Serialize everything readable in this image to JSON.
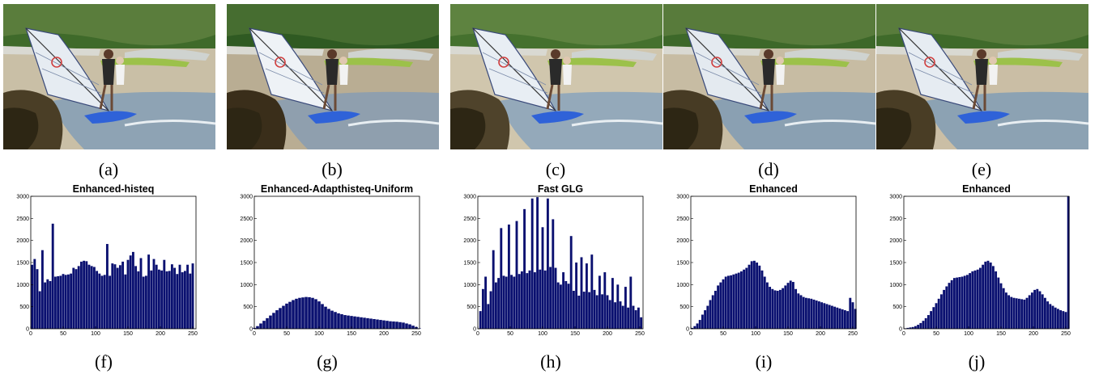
{
  "photo_captions": [
    "(a)",
    "(b)",
    "(c)",
    "(d)",
    "(e)"
  ],
  "chart_captions": [
    "(f)",
    "(g)",
    "(h)",
    "(i)",
    "(j)"
  ],
  "colors": {
    "bar": "#0a1070",
    "axis": "#000000"
  },
  "chart_data": [
    {
      "type": "bar",
      "title": "Enhanced-histeq",
      "xlim": [
        0,
        255
      ],
      "ylim": [
        0,
        3000
      ],
      "xticks": [
        0,
        50,
        100,
        150,
        200,
        250
      ],
      "yticks": [
        0,
        500,
        1000,
        1500,
        2000,
        2500,
        3000
      ],
      "x": [
        2,
        6,
        10,
        14,
        18,
        22,
        26,
        30,
        34,
        38,
        42,
        46,
        50,
        54,
        58,
        62,
        66,
        70,
        74,
        78,
        82,
        86,
        90,
        94,
        98,
        102,
        106,
        110,
        114,
        118,
        122,
        126,
        130,
        134,
        138,
        142,
        146,
        150,
        154,
        158,
        162,
        166,
        170,
        174,
        178,
        182,
        186,
        190,
        194,
        198,
        202,
        206,
        210,
        214,
        218,
        222,
        226,
        230,
        234,
        238,
        242,
        246,
        250
      ],
      "values": [
        1450,
        1580,
        1350,
        850,
        1780,
        1050,
        1120,
        1080,
        2380,
        1180,
        1190,
        1200,
        1240,
        1220,
        1230,
        1250,
        1380,
        1350,
        1420,
        1520,
        1540,
        1530,
        1450,
        1420,
        1400,
        1310,
        1250,
        1200,
        1220,
        1920,
        1200,
        1480,
        1460,
        1380,
        1440,
        1520,
        1230,
        1560,
        1660,
        1740,
        1420,
        1300,
        1600,
        1180,
        1200,
        1680,
        1320,
        1580,
        1450,
        1340,
        1320,
        1560,
        1300,
        1310,
        1460,
        1380,
        1240,
        1450,
        1280,
        1310,
        1450,
        1250,
        1480
      ]
    },
    {
      "type": "bar",
      "title": "Enhanced-Adapthisteq-Uniform",
      "xlim": [
        0,
        255
      ],
      "ylim": [
        0,
        3000
      ],
      "xticks": [
        0,
        50,
        100,
        150,
        200,
        250
      ],
      "yticks": [
        0,
        500,
        1000,
        1500,
        2000,
        2500,
        3000
      ],
      "x": [
        0,
        5,
        10,
        15,
        20,
        25,
        30,
        35,
        40,
        45,
        50,
        55,
        60,
        65,
        70,
        75,
        80,
        85,
        90,
        95,
        100,
        105,
        110,
        115,
        120,
        125,
        130,
        135,
        140,
        145,
        150,
        155,
        160,
        165,
        170,
        175,
        180,
        185,
        190,
        195,
        200,
        205,
        210,
        215,
        220,
        225,
        230,
        235,
        240,
        245,
        250,
        255
      ],
      "values": [
        20,
        60,
        120,
        180,
        240,
        300,
        360,
        420,
        470,
        520,
        570,
        610,
        650,
        680,
        700,
        710,
        720,
        715,
        700,
        670,
        620,
        560,
        500,
        450,
        410,
        380,
        350,
        330,
        310,
        300,
        290,
        280,
        270,
        260,
        250,
        240,
        230,
        220,
        210,
        200,
        190,
        180,
        170,
        165,
        160,
        150,
        140,
        120,
        100,
        70,
        40,
        10
      ]
    },
    {
      "type": "bar",
      "title": "Fast GLG",
      "xlim": [
        0,
        255
      ],
      "ylim": [
        0,
        3000
      ],
      "xticks": [
        0,
        50,
        100,
        150,
        200,
        250
      ],
      "yticks": [
        0,
        500,
        1000,
        1500,
        2000,
        2500,
        3000
      ],
      "x": [
        4,
        8,
        12,
        16,
        20,
        24,
        28,
        32,
        36,
        40,
        44,
        48,
        52,
        56,
        60,
        64,
        68,
        72,
        76,
        80,
        84,
        88,
        92,
        96,
        100,
        104,
        108,
        112,
        116,
        120,
        124,
        128,
        132,
        136,
        140,
        144,
        148,
        152,
        156,
        160,
        164,
        168,
        172,
        176,
        180,
        184,
        188,
        192,
        196,
        200,
        204,
        208,
        212,
        216,
        220,
        224,
        228,
        232,
        236,
        240,
        244,
        248,
        252
      ],
      "values": [
        400,
        900,
        1180,
        560,
        850,
        1780,
        1050,
        1150,
        2280,
        1200,
        1180,
        2360,
        1220,
        1180,
        2440,
        1240,
        1300,
        2710,
        1260,
        1320,
        2950,
        1280,
        2980,
        1340,
        2300,
        1320,
        2950,
        1400,
        2480,
        1380,
        1050,
        1000,
        1280,
        1080,
        1020,
        2100,
        860,
        1500,
        750,
        1620,
        840,
        1480,
        830,
        1680,
        880,
        760,
        1200,
        780,
        1280,
        760,
        650,
        1150,
        600,
        1000,
        620,
        520,
        950,
        480,
        1180,
        520,
        420,
        480,
        260
      ]
    },
    {
      "type": "bar",
      "title": "Enhanced",
      "xlim": [
        0,
        255
      ],
      "ylim": [
        0,
        3000
      ],
      "xticks": [
        0,
        50,
        100,
        150,
        200,
        250
      ],
      "yticks": [
        0,
        500,
        1000,
        1500,
        2000,
        2500,
        3000
      ],
      "x": [
        2,
        6,
        10,
        14,
        18,
        22,
        26,
        30,
        34,
        38,
        42,
        46,
        50,
        54,
        58,
        62,
        66,
        70,
        74,
        78,
        82,
        86,
        90,
        94,
        98,
        102,
        106,
        110,
        114,
        118,
        122,
        126,
        130,
        134,
        138,
        142,
        146,
        150,
        154,
        158,
        162,
        166,
        170,
        174,
        178,
        182,
        186,
        190,
        194,
        198,
        202,
        206,
        210,
        214,
        218,
        222,
        226,
        230,
        234,
        238,
        242,
        246,
        250,
        254
      ],
      "values": [
        20,
        60,
        120,
        200,
        320,
        420,
        520,
        650,
        760,
        860,
        980,
        1050,
        1120,
        1180,
        1200,
        1210,
        1230,
        1250,
        1270,
        1300,
        1340,
        1380,
        1450,
        1530,
        1540,
        1500,
        1430,
        1320,
        1180,
        1050,
        950,
        900,
        870,
        860,
        880,
        920,
        980,
        1040,
        1090,
        1060,
        900,
        800,
        760,
        720,
        700,
        690,
        680,
        660,
        640,
        620,
        600,
        580,
        560,
        540,
        520,
        500,
        480,
        460,
        440,
        420,
        400,
        700,
        600,
        450
      ]
    },
    {
      "type": "bar",
      "title": "Enhanced",
      "xlim": [
        0,
        255
      ],
      "ylim": [
        0,
        3000
      ],
      "xticks": [
        0,
        50,
        100,
        150,
        200,
        250
      ],
      "yticks": [
        0,
        500,
        1000,
        1500,
        2000,
        2500,
        3000
      ],
      "x": [
        2,
        6,
        10,
        14,
        18,
        22,
        26,
        30,
        34,
        38,
        42,
        46,
        50,
        54,
        58,
        62,
        66,
        70,
        74,
        78,
        82,
        86,
        90,
        94,
        98,
        102,
        106,
        110,
        114,
        118,
        122,
        126,
        130,
        134,
        138,
        142,
        146,
        150,
        154,
        158,
        162,
        166,
        170,
        174,
        178,
        182,
        186,
        190,
        194,
        198,
        202,
        206,
        210,
        214,
        218,
        222,
        226,
        230,
        234,
        238,
        242,
        246,
        250,
        254
      ],
      "values": [
        10,
        20,
        30,
        40,
        60,
        90,
        130,
        180,
        240,
        310,
        400,
        490,
        580,
        680,
        780,
        880,
        960,
        1040,
        1100,
        1150,
        1160,
        1170,
        1180,
        1200,
        1220,
        1260,
        1300,
        1320,
        1340,
        1380,
        1450,
        1520,
        1540,
        1500,
        1420,
        1300,
        1160,
        1030,
        920,
        820,
        760,
        720,
        700,
        690,
        680,
        670,
        660,
        700,
        760,
        820,
        880,
        900,
        850,
        780,
        700,
        620,
        560,
        520,
        480,
        450,
        420,
        400,
        380,
        3000
      ]
    }
  ]
}
